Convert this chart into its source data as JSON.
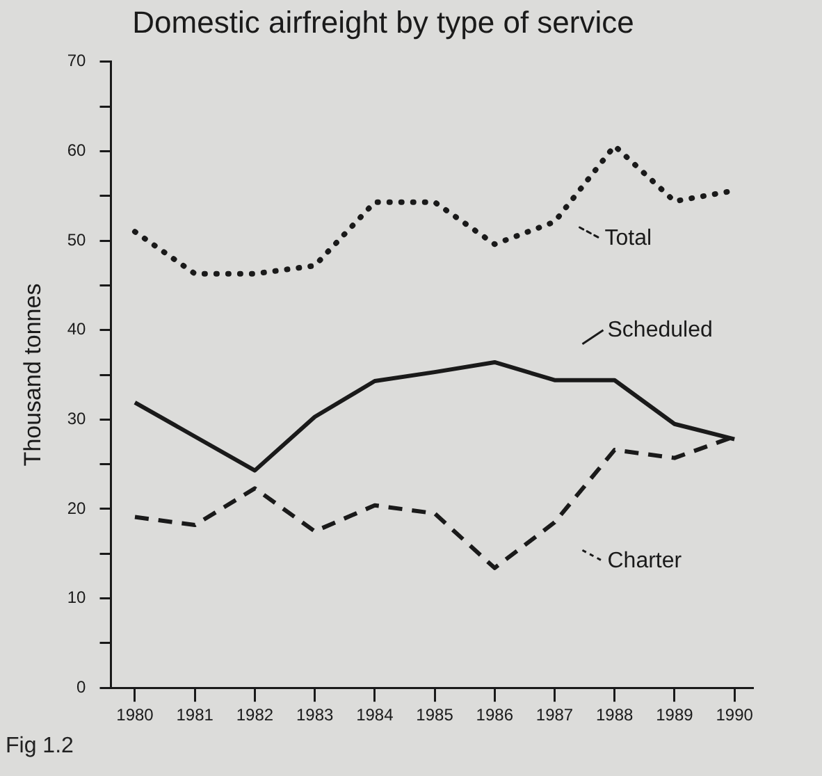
{
  "chart_data": {
    "type": "line",
    "title": "Domestic airfreight by type of service",
    "ylabel": "Thousand tonnes",
    "x": [
      1980,
      1981,
      1982,
      1983,
      1984,
      1985,
      1986,
      1987,
      1988,
      1989,
      1990
    ],
    "xlim": [
      1979.6,
      1990.3
    ],
    "xticks": [
      1980,
      1981,
      1982,
      1983,
      1984,
      1985,
      1986,
      1987,
      1988,
      1989,
      1990
    ],
    "ylim": [
      0,
      70
    ],
    "yticks": [
      0,
      {
        "value": 5,
        "label": null
      },
      10,
      {
        "value": 15,
        "label": null
      },
      20,
      {
        "value": 25,
        "label": null
      },
      30,
      {
        "value": 35,
        "label": null
      },
      40,
      {
        "value": 45,
        "label": null
      },
      50,
      {
        "value": 55,
        "label": null
      },
      60,
      {
        "value": 65,
        "label": null
      },
      70
    ],
    "series": [
      {
        "name": "Total",
        "color": "#1a1a1a",
        "line_style": "dotted",
        "values": [
          51,
          46.3,
          46.3,
          47.2,
          54.3,
          54.3,
          49.6,
          52.1,
          60.6,
          54.4,
          55.6
        ]
      },
      {
        "name": "Scheduled",
        "color": "#1a1a1a",
        "line_style": "solid",
        "values": [
          31.9,
          28.1,
          24.3,
          30.3,
          34.3,
          35.3,
          36.4,
          34.4,
          34.4,
          29.5,
          27.8
        ]
      },
      {
        "name": "Charter",
        "color": "#1a1a1a",
        "line_style": "dashed",
        "values": [
          19.1,
          18.2,
          22.3,
          17.5,
          20.4,
          19.5,
          13.4,
          18.5,
          26.6,
          25.7,
          28.1
        ]
      }
    ],
    "grid": false,
    "legend": "right",
    "marker": "none",
    "annotations": [
      "Fig 1.2"
    ]
  }
}
